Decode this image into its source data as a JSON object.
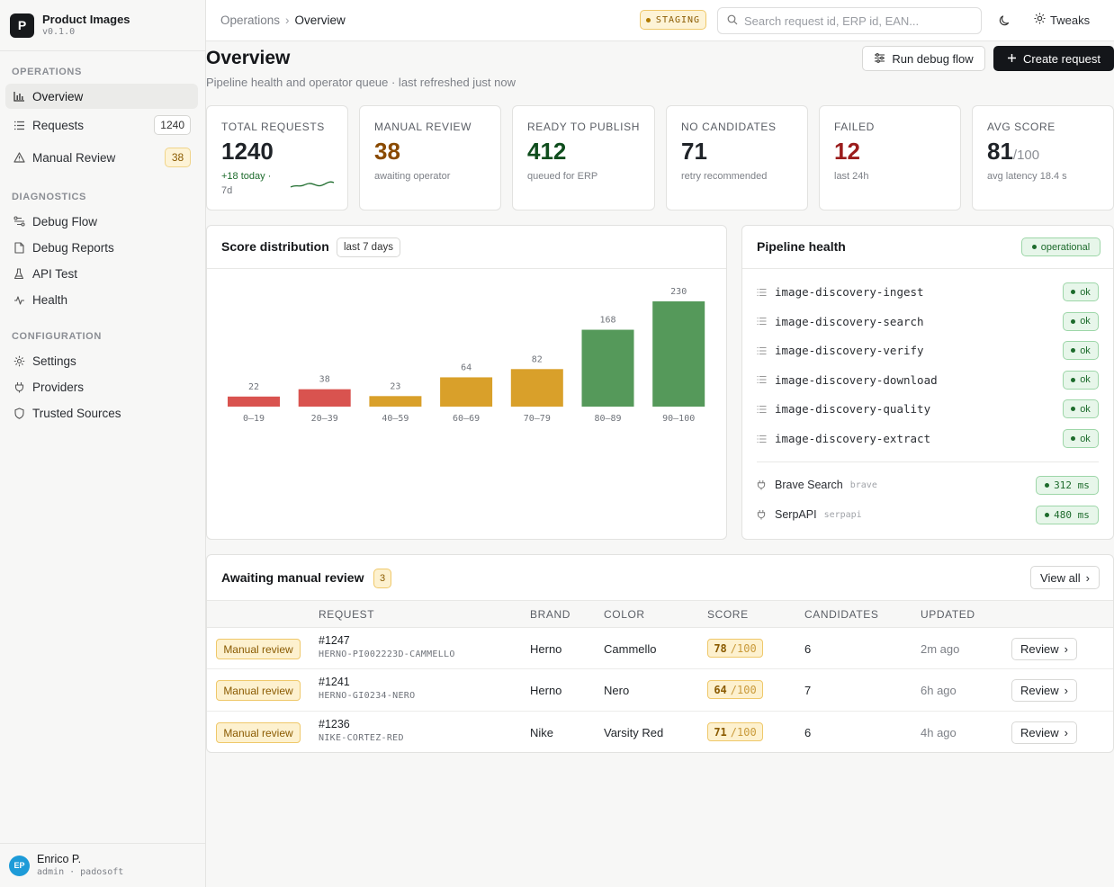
{
  "app": {
    "name": "Product Images",
    "version": "v0.1.0",
    "logo_letter": "P"
  },
  "sidebar": {
    "sections": [
      {
        "label": "OPERATIONS"
      },
      {
        "label": "DIAGNOSTICS"
      },
      {
        "label": "CONFIGURATION"
      }
    ],
    "items": [
      {
        "label": "Overview",
        "icon": "bar-chart-icon",
        "active": true
      },
      {
        "label": "Requests",
        "icon": "list-icon",
        "badge": "1240"
      },
      {
        "label": "Manual Review",
        "icon": "warning-icon",
        "badge": "38"
      },
      {
        "label": "Debug Flow",
        "icon": "flow-icon"
      },
      {
        "label": "Debug Reports",
        "icon": "file-icon"
      },
      {
        "label": "API Test",
        "icon": "flask-icon"
      },
      {
        "label": "Health",
        "icon": "pulse-icon"
      },
      {
        "label": "Settings",
        "icon": "gear-icon"
      },
      {
        "label": "Providers",
        "icon": "plug-icon"
      },
      {
        "label": "Trusted Sources",
        "icon": "shield-icon"
      }
    ]
  },
  "user": {
    "initials": "EP",
    "name": "Enrico P.",
    "role": "admin · padosoft"
  },
  "topbar": {
    "breadcrumb": [
      "Operations",
      "Overview"
    ],
    "env": "STAGING",
    "search_placeholder": "Search request id, ERP id, EAN...",
    "tweaks_label": "Tweaks"
  },
  "header": {
    "title": "Overview",
    "subtitle": "Pipeline health and operator queue · last refreshed just now",
    "debug_button": "Run debug flow",
    "create_button": "Create request"
  },
  "stats": [
    {
      "label": "TOTAL REQUESTS",
      "value": "1240",
      "sub": "+18 today ·",
      "sub2": "7d",
      "color": "#15171a"
    },
    {
      "label": "MANUAL REVIEW",
      "value": "38",
      "sub": "awaiting operator",
      "color": "#8a4a00"
    },
    {
      "label": "READY TO PUBLISH",
      "value": "412",
      "sub": "queued for ERP",
      "color": "#0f4d1d"
    },
    {
      "label": "NO CANDIDATES",
      "value": "71",
      "sub": "retry recommended",
      "color": "#15171a"
    },
    {
      "label": "FAILED",
      "value": "12",
      "sub": "last 24h",
      "color": "#9b1c1c"
    },
    {
      "label": "AVG SCORE",
      "value": "81",
      "value_suffix": "/100",
      "sub": "avg latency 18.4 s",
      "color": "#15171a"
    }
  ],
  "score_panel": {
    "title": "Score distribution",
    "range_chip": "last 7 days"
  },
  "chart_data": {
    "type": "bar",
    "categories": [
      "0–19",
      "20–39",
      "40–59",
      "60–69",
      "70–79",
      "80–89",
      "90–100"
    ],
    "values": [
      22,
      38,
      23,
      64,
      82,
      168,
      230
    ],
    "colors": [
      "#d9534f",
      "#d9534f",
      "#d9a02a",
      "#d9a02a",
      "#d9a02a",
      "#55995a",
      "#55995a"
    ],
    "ylim": [
      0,
      230
    ]
  },
  "pipeline": {
    "title": "Pipeline health",
    "status": "operational",
    "services": [
      {
        "name": "image-discovery-ingest",
        "status": "ok"
      },
      {
        "name": "image-discovery-search",
        "status": "ok"
      },
      {
        "name": "image-discovery-verify",
        "status": "ok"
      },
      {
        "name": "image-discovery-download",
        "status": "ok"
      },
      {
        "name": "image-discovery-quality",
        "status": "ok"
      },
      {
        "name": "image-discovery-extract",
        "status": "ok"
      }
    ],
    "providers": [
      {
        "name": "Brave Search",
        "tag": "brave",
        "latency": "312 ms"
      },
      {
        "name": "SerpAPI",
        "tag": "serpapi",
        "latency": "480 ms"
      }
    ]
  },
  "review": {
    "title": "Awaiting manual review",
    "count": "3",
    "view_all": "View all",
    "columns": [
      "REQUEST",
      "BRAND",
      "COLOR",
      "SCORE",
      "CANDIDATES",
      "UPDATED"
    ],
    "rows": [
      {
        "status": "Manual review",
        "id": "#1247",
        "sku": "HERNO-PI002223D-CAMMELLO",
        "brand": "Herno",
        "color": "Cammello",
        "score": "78",
        "score_den": "/100",
        "candidates": "6",
        "updated": "2m ago",
        "action": "Review"
      },
      {
        "status": "Manual review",
        "id": "#1241",
        "sku": "HERNO-GI0234-NERO",
        "brand": "Herno",
        "color": "Nero",
        "score": "64",
        "score_den": "/100",
        "candidates": "7",
        "updated": "6h ago",
        "action": "Review"
      },
      {
        "status": "Manual review",
        "id": "#1236",
        "sku": "NIKE-CORTEZ-RED",
        "brand": "Nike",
        "color": "Varsity Red",
        "score": "71",
        "score_den": "/100",
        "candidates": "6",
        "updated": "4h ago",
        "action": "Review"
      }
    ]
  }
}
